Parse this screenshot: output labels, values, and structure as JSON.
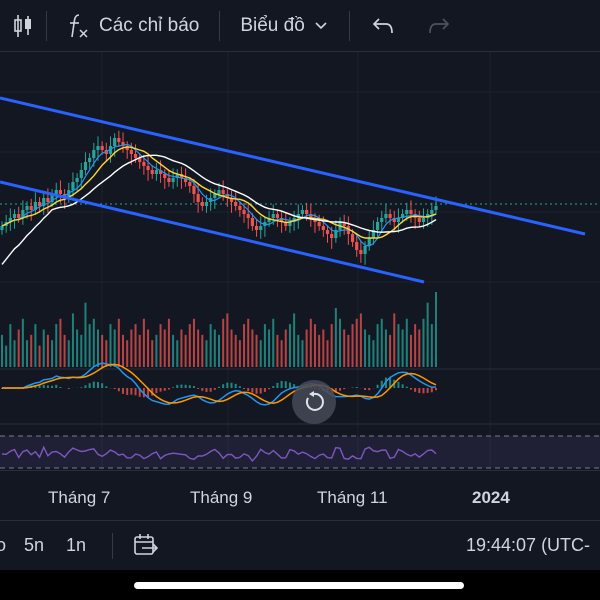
{
  "toolbar": {
    "candle_icon": "candlestick-icon",
    "indicators_icon": "fx-icon",
    "indicators_label": "Các chỉ báo",
    "chart_type_label": "Biểu đồ",
    "chevron_icon": "chevron-down-icon",
    "undo_icon": "undo-icon",
    "redo_icon": "redo-icon"
  },
  "time_axis": {
    "ticks": [
      "Tháng 7",
      "Tháng 9",
      "Tháng 11",
      "2024"
    ]
  },
  "bottom_bar": {
    "partial_left": "o",
    "range_5y": "5n",
    "range_1y": "1n",
    "goto_date_icon": "calendar-arrow-icon",
    "clock": "19:44:07 (UTC-"
  },
  "reset_icon": "reset-chart-icon",
  "colors": {
    "background": "#131722",
    "up": "#26a69a",
    "down": "#ef5350",
    "trendline": "#2962ff",
    "ma_fast": "#fdd835",
    "ma_slow": "#ffffff",
    "macd": "#2196f3",
    "signal": "#ff9800",
    "rsi": "#7e57c2"
  },
  "chart_data": {
    "type": "candlestick",
    "x_ticks": [
      "Tháng 7",
      "Tháng 9",
      "Tháng 11",
      "2024"
    ],
    "price_closes": [
      44,
      45,
      46,
      47,
      46,
      48,
      49,
      48,
      50,
      49,
      51,
      50,
      52,
      53,
      52,
      51,
      53,
      55,
      56,
      58,
      60,
      61,
      63,
      64,
      63,
      62,
      64,
      66,
      65,
      64,
      63,
      62,
      61,
      60,
      59,
      58,
      57,
      58,
      57,
      56,
      55,
      56,
      57,
      56,
      55,
      54,
      52,
      50,
      49,
      50,
      51,
      52,
      53,
      52,
      51,
      50,
      49,
      48,
      47,
      46,
      44,
      43,
      44,
      45,
      46,
      47,
      46,
      45,
      44,
      45,
      46,
      47,
      48,
      47,
      46,
      45,
      44,
      43,
      42,
      41,
      43,
      45,
      44,
      42,
      40,
      38,
      37,
      39,
      41,
      43,
      45,
      46,
      47,
      46,
      45,
      46,
      47,
      48,
      47,
      46,
      45,
      46,
      47,
      48,
      49
    ],
    "volumes": [
      6,
      4,
      8,
      5,
      7,
      9,
      5,
      6,
      8,
      4,
      7,
      6,
      5,
      8,
      9,
      6,
      5,
      10,
      7,
      6,
      12,
      8,
      9,
      7,
      6,
      5,
      8,
      7,
      9,
      6,
      5,
      7,
      8,
      6,
      9,
      7,
      5,
      6,
      8,
      7,
      9,
      6,
      5,
      7,
      6,
      8,
      9,
      7,
      6,
      5,
      8,
      7,
      6,
      9,
      10,
      7,
      6,
      5,
      8,
      9,
      7,
      6,
      5,
      8,
      7,
      9,
      6,
      5,
      7,
      8,
      10,
      6,
      5,
      7,
      9,
      8,
      6,
      7,
      5,
      8,
      11,
      9,
      7,
      6,
      8,
      9,
      10,
      7,
      6,
      5,
      8,
      9,
      7,
      6,
      10,
      8,
      7,
      9,
      6,
      8,
      7,
      9,
      12,
      8,
      14
    ]
  }
}
